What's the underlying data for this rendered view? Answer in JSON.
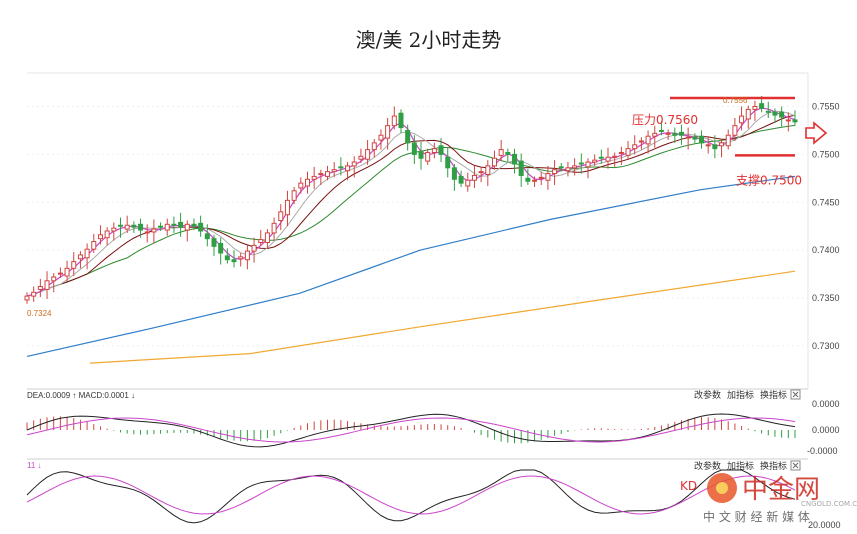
{
  "chart_data": {
    "type": "line",
    "title": "澳/美 2小时走势",
    "main_panel": {
      "y_ticks": [
        "0.7550",
        "0.7500",
        "0.7450",
        "0.7400",
        "0.7350",
        "0.7300"
      ],
      "ylim": [
        0.7255,
        0.7585
      ],
      "left_label": "0.7324",
      "close_series": [
        0.7352,
        0.7356,
        0.7362,
        0.7368,
        0.7372,
        0.7376,
        0.7381,
        0.7388,
        0.7395,
        0.7401,
        0.7409,
        0.7416,
        0.742,
        0.7423,
        0.7425,
        0.7426,
        0.7424,
        0.7421,
        0.7419,
        0.7422,
        0.7424,
        0.7427,
        0.7426,
        0.7424,
        0.7427,
        0.7425,
        0.742,
        0.7412,
        0.7404,
        0.7397,
        0.739,
        0.7388,
        0.7393,
        0.7399,
        0.7405,
        0.7411,
        0.7418,
        0.7428,
        0.744,
        0.7452,
        0.7462,
        0.747,
        0.7474,
        0.7477,
        0.748,
        0.7482,
        0.7484,
        0.7486,
        0.7488,
        0.7492,
        0.7498,
        0.7505,
        0.7512,
        0.752,
        0.753,
        0.754,
        0.7528,
        0.7512,
        0.75,
        0.7496,
        0.7502,
        0.7506,
        0.75,
        0.7486,
        0.7474,
        0.747,
        0.7473,
        0.7478,
        0.7482,
        0.7488,
        0.7496,
        0.7505,
        0.75,
        0.749,
        0.7478,
        0.7472,
        0.7473,
        0.7476,
        0.748,
        0.7484,
        0.7486,
        0.7486,
        0.7488,
        0.749,
        0.7492,
        0.7494,
        0.7496,
        0.7497,
        0.7498,
        0.7502,
        0.7506,
        0.751,
        0.7514,
        0.7519,
        0.7522,
        0.7524,
        0.7522,
        0.752,
        0.752,
        0.7518,
        0.7516,
        0.7512,
        0.751,
        0.7506,
        0.7512,
        0.752,
        0.753,
        0.754,
        0.7547,
        0.755,
        0.7548,
        0.7544,
        0.7541,
        0.7539,
        0.7536,
        0.7534
      ],
      "annotations": [
        {
          "text": "压力0.7560",
          "value": 0.756
        },
        {
          "text": "支撑0.7500",
          "value": 0.75
        },
        {
          "text": "0.7556",
          "value": 0.7556
        }
      ]
    },
    "macd_panel": {
      "header": "DEA:0.0009 ↑ MACD:0.0001 ↓",
      "y_ticks": [
        "0.0000",
        "0.0000",
        "-0.0000"
      ]
    },
    "kdj_panel": {
      "header": "11 ↓",
      "y_ticks": [
        "20.0000"
      ],
      "label": "KD"
    },
    "buttons": [
      "改参数",
      "加指标",
      "换指标"
    ],
    "watermark": {
      "brand": "中金网",
      "sub": "中 文 财 经 新 媒 体",
      "url": "CNGOLD.COM.CN"
    }
  },
  "colors": {
    "up": "#d0453f",
    "down": "#2f9e44",
    "ma_blue": "#2f7ec9",
    "ma_orange": "#f0a830",
    "ma_green": "#2f8a2f",
    "ma_dark": "#7a1010",
    "ma_pink": "#cc44cc",
    "ma_gray": "#aaaaaa",
    "annot": "#e03030"
  }
}
